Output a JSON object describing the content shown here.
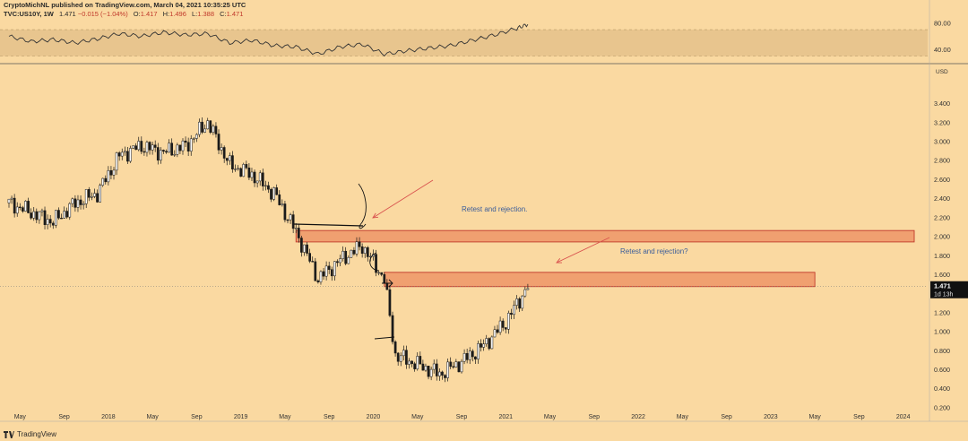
{
  "header": {
    "line1": "CryptoMichNL published on TradingView.com, March 04, 2021 10:35:25 UTC",
    "symbol": "TVC:US10Y, 1W",
    "last": "1.471",
    "change": "−0.015 (−1.04%)",
    "o_label": "O:",
    "o_value": "1.417",
    "h_label": "H:",
    "h_value": "1.496",
    "l_label": "L:",
    "l_value": "1.388",
    "c_label": "C:",
    "c_value": "1.471"
  },
  "footer": {
    "brand": "TradingView"
  },
  "colors": {
    "background": "#fad9a1",
    "zone_fill": "#f0a070",
    "zone_stroke": "#c0392b",
    "annotation_arrow": "#d9534f",
    "annotation_text": "#3b5d9a",
    "candle": "#1a1a1a",
    "rsi_band": "#e8c58e"
  },
  "chart_data": [
    {
      "type": "line",
      "name": "RSI panel",
      "ylim": [
        20,
        85
      ],
      "ticks": [
        "80.00",
        "40.00"
      ],
      "band": [
        30,
        70
      ],
      "x": [
        "2017-04",
        "2017-06",
        "2017-08",
        "2017-10",
        "2017-12",
        "2018-02",
        "2018-04",
        "2018-06",
        "2018-08",
        "2018-10",
        "2018-12",
        "2019-02",
        "2019-04",
        "2019-06",
        "2019-08",
        "2019-10",
        "2019-12",
        "2020-02",
        "2020-04",
        "2020-06",
        "2020-08",
        "2020-10",
        "2020-12",
        "2021-02",
        "2021-03"
      ],
      "values": [
        60,
        52,
        55,
        50,
        56,
        64,
        60,
        66,
        62,
        64,
        50,
        54,
        46,
        44,
        33,
        44,
        48,
        33,
        38,
        42,
        46,
        54,
        62,
        72,
        78
      ]
    },
    {
      "type": "candlestick",
      "name": "TVC:US10Y, 1W",
      "yaxis_unit": "USD",
      "ylim": [
        0.1,
        3.75
      ],
      "yticks": [
        "3.400",
        "3.200",
        "3.000",
        "2.800",
        "2.600",
        "2.400",
        "2.200",
        "2.000",
        "1.800",
        "1.600",
        "1.400",
        "1.200",
        "1.000",
        "0.800",
        "0.600",
        "0.400",
        "0.200"
      ],
      "xticks": [
        "May",
        "Sep",
        "2018",
        "May",
        "Sep",
        "2019",
        "May",
        "Sep",
        "2020",
        "May",
        "Sep",
        "2021",
        "May",
        "Sep",
        "2022",
        "May",
        "Sep",
        "2023",
        "May",
        "Sep",
        "2024"
      ],
      "last_price_label": "1.471",
      "countdown_label": "1d 13h",
      "x": [
        "2017-04",
        "2017-06",
        "2017-08",
        "2017-10",
        "2017-12",
        "2018-02",
        "2018-04",
        "2018-06",
        "2018-08",
        "2018-10",
        "2018-12",
        "2019-02",
        "2019-04",
        "2019-06",
        "2019-08",
        "2019-10",
        "2019-12",
        "2020-02",
        "2020-03",
        "2020-05",
        "2020-07",
        "2020-09",
        "2020-11",
        "2021-01",
        "2021-03"
      ],
      "values": [
        2.35,
        2.25,
        2.15,
        2.35,
        2.45,
        2.85,
        2.95,
        2.88,
        2.95,
        3.2,
        2.75,
        2.65,
        2.45,
        2.05,
        1.55,
        1.75,
        1.9,
        1.55,
        0.75,
        0.65,
        0.55,
        0.68,
        0.85,
        1.1,
        1.47
      ],
      "zones": [
        {
          "label": "Retest and rejection.",
          "y0": 1.94,
          "y1": 2.06,
          "x_start": "2019-06",
          "x_end": "2024-02"
        },
        {
          "label": "Retest and rejection?",
          "y0": 1.47,
          "y1": 1.62,
          "x_start": "2020-02",
          "x_end": "2023-05"
        }
      ]
    }
  ]
}
